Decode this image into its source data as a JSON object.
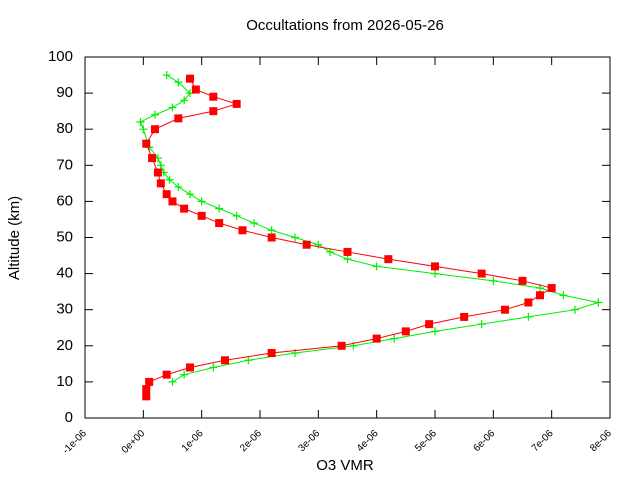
{
  "chart_data": {
    "type": "scatter",
    "title": "Occultations from 2026-05-26",
    "x_label": "O3 VMR",
    "y_label": "Altitude (km)",
    "xlim": [
      -1e-06,
      8e-06
    ],
    "ylim": [
      0,
      100
    ],
    "xticks": [
      {
        "value": -1e-06,
        "label": "-1e-06"
      },
      {
        "value": 0,
        "label": "0e+00"
      },
      {
        "value": 1e-06,
        "label": "1e-06"
      },
      {
        "value": 2e-06,
        "label": "2e-06"
      },
      {
        "value": 3e-06,
        "label": "3e-06"
      },
      {
        "value": 4e-06,
        "label": "4e-06"
      },
      {
        "value": 5e-06,
        "label": "5e-06"
      },
      {
        "value": 6e-06,
        "label": "6e-06"
      },
      {
        "value": 7e-06,
        "label": "7e-06"
      },
      {
        "value": 8e-06,
        "label": "8e-06"
      }
    ],
    "yticks": [
      0,
      10,
      20,
      30,
      40,
      50,
      60,
      70,
      80,
      90,
      100
    ],
    "series": [
      {
        "color": "#00ee00",
        "marker": "plus",
        "x": [
          5e-07,
          7e-07,
          1.2e-06,
          1.8e-06,
          2.6e-06,
          3.6e-06,
          4.3e-06,
          5e-06,
          5.8e-06,
          6.6e-06,
          7.4e-06,
          7.8e-06,
          7.2e-06,
          6.8e-06,
          6e-06,
          5e-06,
          4e-06,
          3.5e-06,
          3.2e-06,
          3e-06,
          2.6e-06,
          2.2e-06,
          1.9e-06,
          1.6e-06,
          1.3e-06,
          1e-06,
          8e-07,
          6e-07,
          4.5e-07,
          3.5e-07,
          3e-07,
          2.5e-07,
          1e-07,
          0,
          -5e-08,
          2e-07,
          5e-07,
          7e-07,
          8e-07,
          6e-07,
          4e-07
        ],
        "values": [
          10,
          12,
          14,
          16,
          18,
          20,
          22,
          24,
          26,
          28,
          30,
          32,
          34,
          36,
          38,
          40,
          42,
          44,
          46,
          48,
          50,
          52,
          54,
          56,
          58,
          60,
          62,
          64,
          66,
          68,
          70,
          72,
          75,
          80,
          82,
          84,
          86,
          88,
          90,
          93,
          95
        ]
      },
      {
        "color": "#ff0000",
        "marker": "square",
        "x": [
          5e-08,
          5e-08,
          1e-07,
          4e-07,
          8e-07,
          1.4e-06,
          2.2e-06,
          3.4e-06,
          4e-06,
          4.5e-06,
          4.9e-06,
          5.5e-06,
          6.2e-06,
          6.6e-06,
          6.8e-06,
          7e-06,
          6.5e-06,
          5.8e-06,
          5e-06,
          4.2e-06,
          3.5e-06,
          2.8e-06,
          2.2e-06,
          1.7e-06,
          1.3e-06,
          1e-06,
          7e-07,
          5e-07,
          4e-07,
          3e-07,
          2.5e-07,
          1.5e-07,
          5e-08,
          2e-07,
          6e-07,
          1.2e-06,
          1.6e-06,
          1.2e-06,
          9e-07,
          8e-07
        ],
        "values": [
          6,
          8,
          10,
          12,
          14,
          16,
          18,
          20,
          22,
          24,
          26,
          28,
          30,
          32,
          34,
          36,
          38,
          40,
          42,
          44,
          46,
          48,
          50,
          52,
          54,
          56,
          58,
          60,
          62,
          65,
          68,
          72,
          76,
          80,
          83,
          85,
          87,
          89,
          91,
          94
        ]
      }
    ]
  }
}
